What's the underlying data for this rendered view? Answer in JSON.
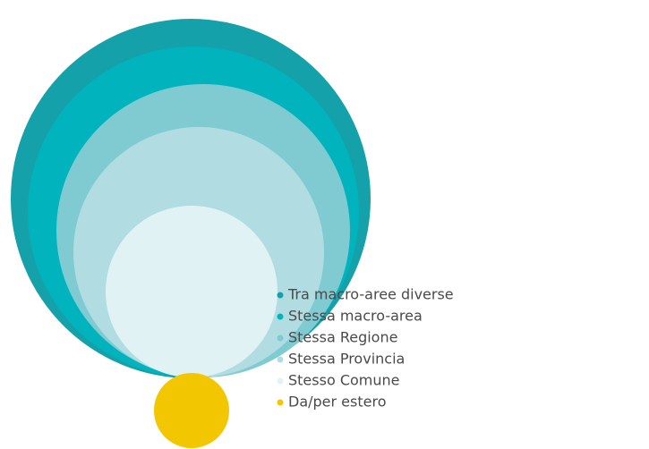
{
  "legend": {
    "items": [
      {
        "label": "Tra macro-aree diverse",
        "color": "#15a1aa"
      },
      {
        "label": "Stessa macro-area",
        "color": "#00b3bd"
      },
      {
        "label": "Stessa Regione",
        "color": "#7fcbd1"
      },
      {
        "label": "Stessa Provincia",
        "color": "#b1dde2"
      },
      {
        "label": "Stesso Comune",
        "color": "#e1f2f4"
      },
      {
        "label": "Da/per estero",
        "color": "#f2c600"
      }
    ]
  }
}
